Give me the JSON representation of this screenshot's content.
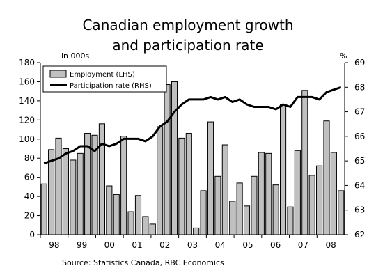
{
  "chart_data": {
    "type": "bar+line",
    "title_line1": "Canadian employment growth",
    "title_line2": "and participation rate",
    "left_axis_unit": "in 000s",
    "right_axis_unit": "%",
    "left_ylim": [
      0,
      180
    ],
    "right_ylim": [
      62,
      69
    ],
    "left_ticks": [
      "0",
      "20",
      "40",
      "60",
      "80",
      "100",
      "120",
      "140",
      "160",
      "180"
    ],
    "right_ticks": [
      "62",
      "63",
      "64",
      "65",
      "66",
      "67",
      "68",
      "69"
    ],
    "x_labels": [
      "98",
      "99",
      "00",
      "01",
      "02",
      "03",
      "04",
      "05",
      "06",
      "07",
      "08"
    ],
    "legend_position": "top-left",
    "source": "Source: Statistics Canada, RBC Economics",
    "series": [
      {
        "name": "Employment (LHS)",
        "type": "bar",
        "color": "#c0c0c0",
        "values": [
          53,
          89,
          101,
          90,
          78,
          85,
          106,
          104,
          116,
          51,
          42,
          103,
          24,
          41,
          19,
          11,
          113,
          157,
          160,
          101,
          106,
          7,
          46,
          118,
          61,
          94,
          35,
          54,
          30,
          61,
          86,
          85,
          52,
          136,
          29,
          88,
          151,
          62,
          72,
          119,
          86,
          46
        ]
      },
      {
        "name": "Participation rate (RHS)",
        "type": "line",
        "color": "#000000",
        "values": [
          64.9,
          65.0,
          65.1,
          65.3,
          65.4,
          65.6,
          65.6,
          65.4,
          65.7,
          65.6,
          65.7,
          65.9,
          65.9,
          65.9,
          65.8,
          66.0,
          66.4,
          66.6,
          67.0,
          67.3,
          67.5,
          67.5,
          67.5,
          67.6,
          67.5,
          67.6,
          67.4,
          67.5,
          67.3,
          67.2,
          67.2,
          67.2,
          67.1,
          67.3,
          67.2,
          67.6,
          67.6,
          67.6,
          67.5,
          67.8,
          67.9,
          68.0
        ]
      }
    ]
  }
}
